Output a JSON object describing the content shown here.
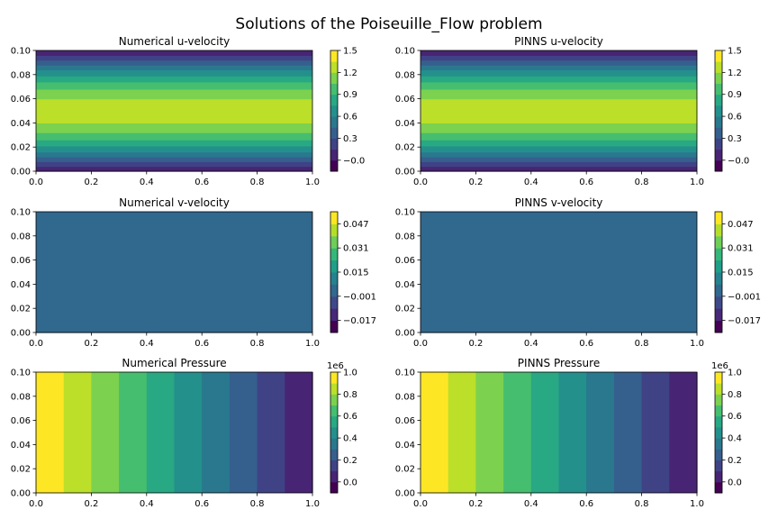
{
  "title": "Solutions of the Poiseuille_Flow problem",
  "chart_data": [
    {
      "type": "heatmap",
      "title": "Numerical u-velocity",
      "field": "u-velocity",
      "orientation": "horizontal-bands",
      "xlim": [
        0,
        1
      ],
      "ylim": [
        0,
        0.1
      ],
      "xticks": [
        "0.0",
        "0.2",
        "0.4",
        "0.6",
        "0.8",
        "1.0"
      ],
      "yticks": [
        "0.00",
        "0.02",
        "0.04",
        "0.06",
        "0.08",
        "0.10"
      ],
      "levels": [
        -0.15,
        0.0,
        0.15,
        0.3,
        0.45,
        0.6,
        0.75,
        0.9,
        1.05,
        1.2,
        1.35,
        1.5
      ],
      "colorbar_ticks": [
        "−0.0",
        "0.3",
        "0.6",
        "0.9",
        "1.2",
        "1.5"
      ],
      "colorbar_offset": "",
      "bands": [
        {
          "from": 0.0,
          "to": 0.004,
          "value": 0.075
        },
        {
          "from": 0.004,
          "to": 0.008,
          "value": 0.225
        },
        {
          "from": 0.008,
          "to": 0.012,
          "value": 0.375
        },
        {
          "from": 0.012,
          "to": 0.016,
          "value": 0.525
        },
        {
          "from": 0.016,
          "to": 0.021,
          "value": 0.675
        },
        {
          "from": 0.021,
          "to": 0.026,
          "value": 0.825
        },
        {
          "from": 0.026,
          "to": 0.032,
          "value": 0.975
        },
        {
          "from": 0.032,
          "to": 0.04,
          "value": 1.125
        },
        {
          "from": 0.04,
          "to": 0.06,
          "value": 1.275
        },
        {
          "from": 0.06,
          "to": 0.068,
          "value": 1.125
        },
        {
          "from": 0.068,
          "to": 0.074,
          "value": 0.975
        },
        {
          "from": 0.074,
          "to": 0.079,
          "value": 0.825
        },
        {
          "from": 0.079,
          "to": 0.084,
          "value": 0.675
        },
        {
          "from": 0.084,
          "to": 0.088,
          "value": 0.525
        },
        {
          "from": 0.088,
          "to": 0.092,
          "value": 0.375
        },
        {
          "from": 0.092,
          "to": 0.096,
          "value": 0.225
        },
        {
          "from": 0.096,
          "to": 0.1,
          "value": 0.075
        }
      ]
    },
    {
      "type": "heatmap",
      "title": "PINNS u-velocity",
      "field": "u-velocity",
      "orientation": "horizontal-bands",
      "xlim": [
        0,
        1
      ],
      "ylim": [
        0,
        0.1
      ],
      "xticks": [
        "0.0",
        "0.2",
        "0.4",
        "0.6",
        "0.8",
        "1.0"
      ],
      "yticks": [
        "0.00",
        "0.02",
        "0.04",
        "0.06",
        "0.08",
        "0.10"
      ],
      "levels": [
        -0.15,
        0.0,
        0.15,
        0.3,
        0.45,
        0.6,
        0.75,
        0.9,
        1.05,
        1.2,
        1.35,
        1.5
      ],
      "colorbar_ticks": [
        "−0.0",
        "0.3",
        "0.6",
        "0.9",
        "1.2",
        "1.5"
      ],
      "colorbar_offset": "",
      "bands": [
        {
          "from": 0.0,
          "to": 0.004,
          "value": 0.075
        },
        {
          "from": 0.004,
          "to": 0.008,
          "value": 0.225
        },
        {
          "from": 0.008,
          "to": 0.012,
          "value": 0.375
        },
        {
          "from": 0.012,
          "to": 0.016,
          "value": 0.525
        },
        {
          "from": 0.016,
          "to": 0.021,
          "value": 0.675
        },
        {
          "from": 0.021,
          "to": 0.026,
          "value": 0.825
        },
        {
          "from": 0.026,
          "to": 0.032,
          "value": 0.975
        },
        {
          "from": 0.032,
          "to": 0.04,
          "value": 1.125
        },
        {
          "from": 0.04,
          "to": 0.06,
          "value": 1.275
        },
        {
          "from": 0.06,
          "to": 0.068,
          "value": 1.125
        },
        {
          "from": 0.068,
          "to": 0.074,
          "value": 0.975
        },
        {
          "from": 0.074,
          "to": 0.079,
          "value": 0.825
        },
        {
          "from": 0.079,
          "to": 0.084,
          "value": 0.675
        },
        {
          "from": 0.084,
          "to": 0.088,
          "value": 0.525
        },
        {
          "from": 0.088,
          "to": 0.092,
          "value": 0.375
        },
        {
          "from": 0.092,
          "to": 0.096,
          "value": 0.225
        },
        {
          "from": 0.096,
          "to": 0.1,
          "value": 0.075
        }
      ]
    },
    {
      "type": "heatmap",
      "title": "Numerical v-velocity",
      "field": "v-velocity",
      "orientation": "uniform",
      "xlim": [
        0,
        1
      ],
      "ylim": [
        0,
        0.1
      ],
      "xticks": [
        "0.0",
        "0.2",
        "0.4",
        "0.6",
        "0.8",
        "1.0"
      ],
      "yticks": [
        "0.00",
        "0.02",
        "0.04",
        "0.06",
        "0.08",
        "0.10"
      ],
      "levels": [
        -0.025,
        -0.017,
        -0.009,
        -0.001,
        0.007,
        0.015,
        0.023,
        0.031,
        0.039,
        0.047,
        0.055
      ],
      "colorbar_ticks": [
        "−0.017",
        "−0.001",
        "0.015",
        "0.031",
        "0.047"
      ],
      "colorbar_offset": "",
      "bands": [
        {
          "from": 0.0,
          "to": 0.1,
          "value": 0.0
        }
      ]
    },
    {
      "type": "heatmap",
      "title": "PINNS v-velocity",
      "field": "v-velocity",
      "orientation": "uniform",
      "xlim": [
        0,
        1
      ],
      "ylim": [
        0,
        0.1
      ],
      "xticks": [
        "0.0",
        "0.2",
        "0.4",
        "0.6",
        "0.8",
        "1.0"
      ],
      "yticks": [
        "0.00",
        "0.02",
        "0.04",
        "0.06",
        "0.08",
        "0.10"
      ],
      "levels": [
        -0.025,
        -0.017,
        -0.009,
        -0.001,
        0.007,
        0.015,
        0.023,
        0.031,
        0.039,
        0.047,
        0.055
      ],
      "colorbar_ticks": [
        "−0.017",
        "−0.001",
        "0.015",
        "0.031",
        "0.047"
      ],
      "colorbar_offset": "",
      "bands": [
        {
          "from": 0.0,
          "to": 0.1,
          "value": 0.0
        }
      ]
    },
    {
      "type": "heatmap",
      "title": "Numerical Pressure",
      "field": "pressure",
      "orientation": "vertical-bands",
      "xlim": [
        0,
        1
      ],
      "ylim": [
        0,
        0.1
      ],
      "xticks": [
        "0.0",
        "0.2",
        "0.4",
        "0.6",
        "0.8",
        "1.0"
      ],
      "yticks": [
        "0.00",
        "0.02",
        "0.04",
        "0.06",
        "0.08",
        "0.10"
      ],
      "levels": [
        -0.1,
        0.0,
        0.1,
        0.2,
        0.3,
        0.4,
        0.5,
        0.6,
        0.7,
        0.8,
        0.9,
        1.0
      ],
      "colorbar_ticks": [
        "0.0",
        "0.2",
        "0.4",
        "0.6",
        "0.8",
        "1.0"
      ],
      "colorbar_offset": "1e6",
      "bands": [
        {
          "from": 0.0,
          "to": 0.1,
          "value": 0.95
        },
        {
          "from": 0.1,
          "to": 0.2,
          "value": 0.85
        },
        {
          "from": 0.2,
          "to": 0.3,
          "value": 0.75
        },
        {
          "from": 0.3,
          "to": 0.4,
          "value": 0.65
        },
        {
          "from": 0.4,
          "to": 0.5,
          "value": 0.55
        },
        {
          "from": 0.5,
          "to": 0.6,
          "value": 0.45
        },
        {
          "from": 0.6,
          "to": 0.7,
          "value": 0.35
        },
        {
          "from": 0.7,
          "to": 0.8,
          "value": 0.25
        },
        {
          "from": 0.8,
          "to": 0.9,
          "value": 0.15
        },
        {
          "from": 0.9,
          "to": 1.0,
          "value": 0.05
        }
      ]
    },
    {
      "type": "heatmap",
      "title": "PINNS Pressure",
      "field": "pressure",
      "orientation": "vertical-bands",
      "xlim": [
        0,
        1
      ],
      "ylim": [
        0,
        0.1
      ],
      "xticks": [
        "0.0",
        "0.2",
        "0.4",
        "0.6",
        "0.8",
        "1.0"
      ],
      "yticks": [
        "0.00",
        "0.02",
        "0.04",
        "0.06",
        "0.08",
        "0.10"
      ],
      "levels": [
        -0.1,
        0.0,
        0.1,
        0.2,
        0.3,
        0.4,
        0.5,
        0.6,
        0.7,
        0.8,
        0.9,
        1.0
      ],
      "colorbar_ticks": [
        "0.0",
        "0.2",
        "0.4",
        "0.6",
        "0.8",
        "1.0"
      ],
      "colorbar_offset": "1e6",
      "bands": [
        {
          "from": 0.0,
          "to": 0.1,
          "value": 0.95
        },
        {
          "from": 0.1,
          "to": 0.2,
          "value": 0.85
        },
        {
          "from": 0.2,
          "to": 0.3,
          "value": 0.75
        },
        {
          "from": 0.3,
          "to": 0.4,
          "value": 0.65
        },
        {
          "from": 0.4,
          "to": 0.5,
          "value": 0.55
        },
        {
          "from": 0.5,
          "to": 0.6,
          "value": 0.45
        },
        {
          "from": 0.6,
          "to": 0.7,
          "value": 0.35
        },
        {
          "from": 0.7,
          "to": 0.8,
          "value": 0.25
        },
        {
          "from": 0.8,
          "to": 0.9,
          "value": 0.15
        },
        {
          "from": 0.9,
          "to": 1.0,
          "value": 0.05
        }
      ]
    }
  ],
  "colormap": "viridis"
}
